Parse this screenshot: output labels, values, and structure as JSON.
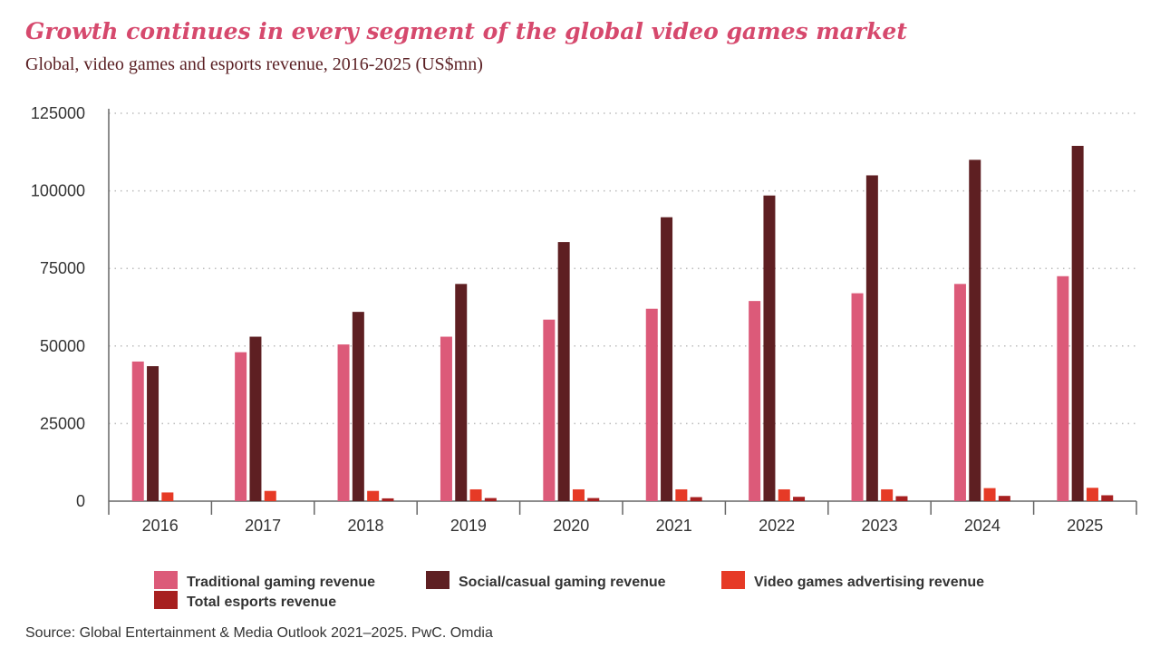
{
  "chart_data": {
    "type": "bar",
    "title": "Growth continues in every segment of the global video games market",
    "subtitle": "Global, video games and esports revenue, 2016-2025 (US$mn)",
    "categories": [
      "2016",
      "2017",
      "2018",
      "2019",
      "2020",
      "2021",
      "2022",
      "2023",
      "2024",
      "2025"
    ],
    "ylim": [
      0,
      125000
    ],
    "yticks": [
      "0",
      "25000",
      "50000",
      "75000",
      "100000",
      "125000"
    ],
    "grid": "horizontal dotted",
    "legend_position": "bottom",
    "series": [
      {
        "name": "Traditional gaming revenue",
        "color": "#dc5a79",
        "values": [
          45000,
          48000,
          50500,
          53000,
          58500,
          62000,
          64500,
          67000,
          70000,
          72500
        ]
      },
      {
        "name": "Social/casual gaming revenue",
        "color": "#5e1f22",
        "values": [
          43500,
          53000,
          61000,
          70000,
          83500,
          91500,
          98500,
          105000,
          110000,
          114500
        ]
      },
      {
        "name": "Video games advertising revenue",
        "color": "#e63a26",
        "values": [
          2800,
          3300,
          3300,
          3800,
          3800,
          3800,
          3800,
          3800,
          4200,
          4300
        ]
      },
      {
        "name": "Total esports revenue",
        "color": "#a72020",
        "values": [
          0,
          0,
          900,
          1000,
          1000,
          1300,
          1400,
          1600,
          1700,
          1900
        ]
      }
    ],
    "source": "Source: Global Entertainment & Media Outlook 2021–2025. PwC. Omdia"
  }
}
